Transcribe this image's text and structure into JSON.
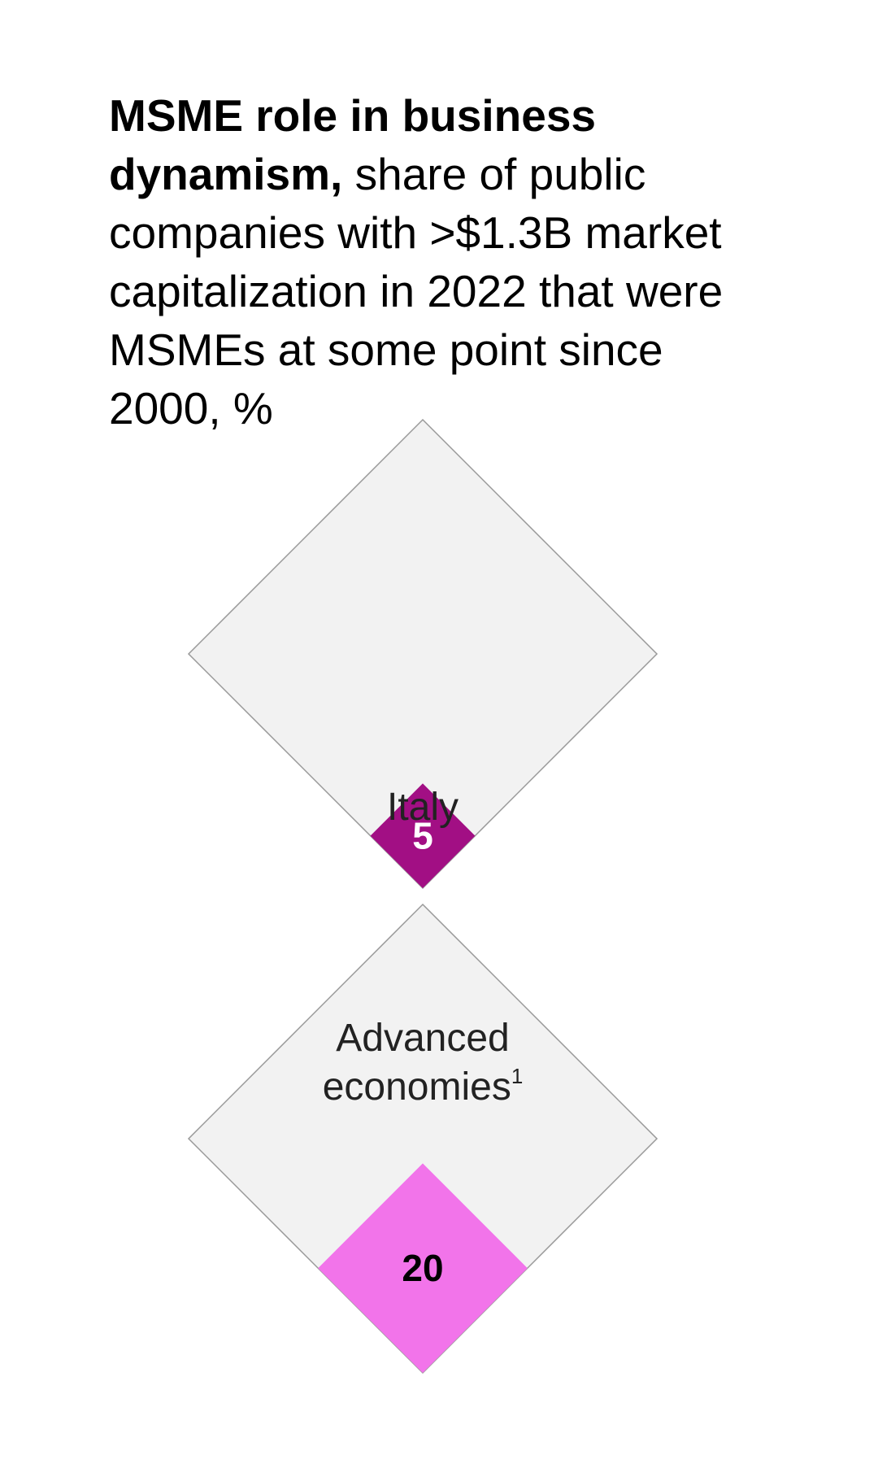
{
  "title_bold": "MSME role in business dynamism,",
  "title_rest": " share of public companies with >$1.3B market capitalization in 2022 that were MSMEs at some point since 2000, %",
  "colors": {
    "outer_fill": "#f2f2f2",
    "outer_stroke": "#999999",
    "italy": "#a20f84",
    "advanced": "#f274ea"
  },
  "chart_data": {
    "type": "area",
    "unit": "%",
    "scale_max": 100,
    "categories": [
      {
        "label": "Italy",
        "footnote": "",
        "value": 5,
        "fill": "#a20f84",
        "label_color": "#ffffff"
      },
      {
        "label": "Advanced economies",
        "footnote": "1",
        "value": 20,
        "fill": "#f274ea",
        "label_color": "#000000"
      }
    ]
  }
}
